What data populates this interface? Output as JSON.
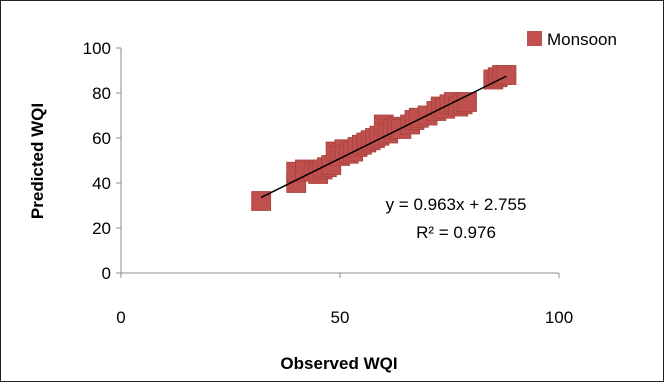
{
  "chart_data": {
    "type": "scatter",
    "title": "",
    "xlabel": "Observed WQI",
    "ylabel": "Predicted WQI",
    "xlim": [
      0,
      100
    ],
    "ylim": [
      0,
      100
    ],
    "xticks": [
      0,
      50,
      100
    ],
    "yticks": [
      0,
      20,
      40,
      60,
      80,
      100
    ],
    "grid": false,
    "legend_position": "top-right",
    "series": [
      {
        "name": "Monsoon",
        "color": "#c0504d",
        "marker": "square",
        "points": [
          [
            32,
            32
          ],
          [
            40,
            40
          ],
          [
            40,
            45
          ],
          [
            42,
            46
          ],
          [
            44,
            45
          ],
          [
            45,
            44
          ],
          [
            46,
            46
          ],
          [
            47,
            47
          ],
          [
            48,
            48
          ],
          [
            49,
            54
          ],
          [
            50,
            52
          ],
          [
            51,
            55
          ],
          [
            52,
            53
          ],
          [
            53,
            54
          ],
          [
            54,
            56
          ],
          [
            55,
            57
          ],
          [
            56,
            58
          ],
          [
            57,
            59
          ],
          [
            58,
            60
          ],
          [
            59,
            61
          ],
          [
            60,
            66
          ],
          [
            61,
            62
          ],
          [
            62,
            64
          ],
          [
            63,
            65
          ],
          [
            64,
            64
          ],
          [
            66,
            66
          ],
          [
            67,
            68
          ],
          [
            68,
            69
          ],
          [
            70,
            70
          ],
          [
            72,
            72
          ],
          [
            73,
            74
          ],
          [
            74,
            73
          ],
          [
            75,
            75
          ],
          [
            76,
            76
          ],
          [
            77,
            74
          ],
          [
            78,
            75
          ],
          [
            79,
            76
          ],
          [
            85,
            86
          ],
          [
            86,
            87
          ],
          [
            87,
            88
          ],
          [
            88,
            88
          ]
        ]
      }
    ],
    "trendline": {
      "slope": 0.963,
      "intercept": 2.755,
      "x_range": [
        32,
        88
      ],
      "equation": "y = 0.963x + 2.755",
      "r_squared": "R² = 0.976"
    }
  }
}
